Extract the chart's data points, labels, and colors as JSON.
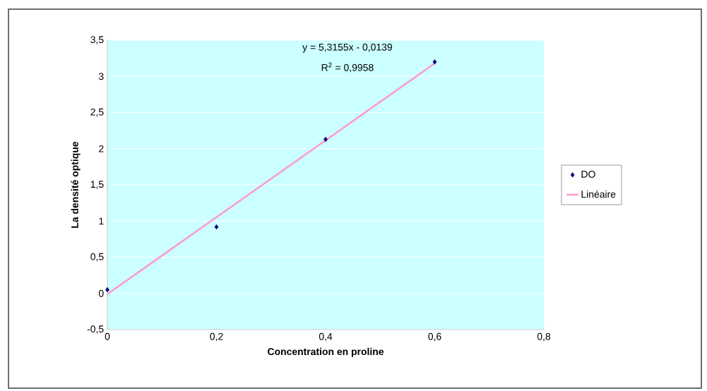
{
  "chart_data": {
    "type": "scatter",
    "xlabel": "Concentration en proline",
    "ylabel": "La densité optique",
    "x": [
      0,
      0.2,
      0.4,
      0.6
    ],
    "series": [
      {
        "name": "DO",
        "color": "#000080",
        "marker": "diamond",
        "values": [
          0.05,
          0.92,
          2.13,
          3.2
        ]
      },
      {
        "name": "Linéaire",
        "type": "line",
        "color": "#ff99cc",
        "x": [
          0,
          0.6
        ],
        "values": [
          -0.01,
          3.18
        ]
      }
    ],
    "annotations": [
      "y = 5,3155x - 0,0139",
      "R$^{2}$ = 0,9958"
    ],
    "xlim": [
      0,
      0.8
    ],
    "ylim": [
      -0.5,
      3.5
    ],
    "xticks": [
      0,
      {
        "value": 0.2,
        "label": "0,2"
      },
      {
        "value": 0.4,
        "label": "0,4"
      },
      {
        "value": 0.6,
        "label": "0,6"
      },
      {
        "value": 0.8,
        "label": "0,8"
      }
    ],
    "yticks": [
      {
        "value": -0.5,
        "label": "-0,5"
      },
      0,
      {
        "value": 0.5,
        "label": "0,5"
      },
      1,
      {
        "value": 1.5,
        "label": "1,5"
      },
      2,
      {
        "value": 2.5,
        "label": "2,5"
      },
      3,
      {
        "value": 3.5,
        "label": "3,5"
      }
    ],
    "grid": "y",
    "legend": "right"
  }
}
